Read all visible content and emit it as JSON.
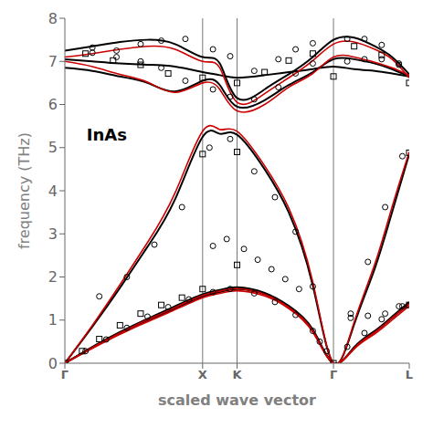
{
  "chart_data": {
    "type": "line",
    "xlabel": "scaled wave vector",
    "ylabel": "frequency (THz)",
    "xlim": [
      0,
      1.0
    ],
    "ylim": [
      0,
      8
    ],
    "xticks": [
      {
        "value": 0.0,
        "label": "Γ"
      },
      {
        "value": 0.4,
        "label": "X"
      },
      {
        "value": 0.5,
        "label": "K"
      },
      {
        "value": 0.78,
        "label": "Γ"
      },
      {
        "value": 1.0,
        "label": "L"
      }
    ],
    "yticks": [
      0,
      1,
      2,
      3,
      4,
      5,
      6,
      7,
      8
    ],
    "grid": false,
    "vlines": [
      0.4,
      0.5,
      0.78
    ],
    "annotations": [
      {
        "text": "InAs",
        "x": 0.05,
        "y": 5.3
      }
    ],
    "series": [
      {
        "type": "line",
        "color": "#000000",
        "x": [
          0.0,
          0.1,
          0.2,
          0.3,
          0.4,
          0.45,
          0.5,
          0.58,
          0.65,
          0.72,
          0.78,
          0.84,
          0.9,
          0.95,
          1.0
        ],
        "values": [
          0.0,
          0.45,
          0.85,
          1.2,
          1.55,
          1.65,
          1.72,
          1.6,
          1.3,
          0.75,
          0.0,
          0.35,
          0.72,
          1.05,
          1.38
        ]
      },
      {
        "type": "line",
        "color": "#000000",
        "x": [
          0.0,
          0.1,
          0.2,
          0.3,
          0.4,
          0.45,
          0.5,
          0.58,
          0.65,
          0.72,
          0.78,
          0.84,
          0.9,
          0.95,
          1.0
        ],
        "values": [
          0.0,
          0.47,
          0.88,
          1.25,
          1.6,
          1.7,
          1.76,
          1.63,
          1.33,
          0.78,
          0.0,
          0.37,
          0.75,
          1.08,
          1.42
        ]
      },
      {
        "type": "line",
        "color": "#000000",
        "x": [
          0.0,
          0.08,
          0.16,
          0.24,
          0.32,
          0.4,
          0.45,
          0.5,
          0.58,
          0.65,
          0.72,
          0.78,
          0.84,
          0.9,
          0.95,
          1.0
        ],
        "values": [
          0.0,
          0.85,
          1.75,
          2.7,
          3.8,
          5.25,
          5.32,
          5.3,
          4.5,
          3.5,
          1.8,
          0.0,
          0.9,
          2.2,
          3.5,
          4.85
        ]
      },
      {
        "type": "line",
        "color": "#000000",
        "x": [
          0.0,
          0.08,
          0.16,
          0.24,
          0.32,
          0.4,
          0.45,
          0.5,
          0.58,
          0.65,
          0.72,
          0.78,
          0.84,
          0.9,
          0.95,
          1.0
        ],
        "values": [
          6.85,
          6.78,
          6.65,
          6.5,
          6.3,
          6.55,
          6.45,
          5.95,
          6.1,
          6.45,
          6.75,
          7.05,
          7.05,
          6.95,
          6.82,
          6.65
        ]
      },
      {
        "type": "line",
        "color": "#000000",
        "x": [
          0.0,
          0.08,
          0.16,
          0.24,
          0.32,
          0.4,
          0.45,
          0.5,
          0.58,
          0.65,
          0.72,
          0.78,
          0.84,
          0.9,
          0.95,
          1.0
        ],
        "values": [
          7.25,
          7.35,
          7.45,
          7.5,
          7.4,
          7.1,
          6.95,
          6.15,
          6.35,
          6.7,
          7.1,
          7.5,
          7.55,
          7.35,
          7.1,
          6.7
        ]
      },
      {
        "type": "line",
        "color": "#000000",
        "x": [
          0.0,
          0.08,
          0.16,
          0.24,
          0.32,
          0.4,
          0.45,
          0.5,
          0.58,
          0.65,
          0.72,
          0.78,
          0.84,
          0.9,
          0.95,
          1.0
        ],
        "values": [
          7.05,
          7.0,
          6.95,
          6.92,
          6.88,
          6.75,
          6.68,
          6.62,
          6.68,
          6.75,
          6.82,
          6.88,
          6.82,
          6.78,
          6.72,
          6.65
        ]
      },
      {
        "type": "line",
        "color": "#cc0000",
        "x": [
          0.0,
          0.1,
          0.2,
          0.3,
          0.4,
          0.45,
          0.5,
          0.58,
          0.65,
          0.72,
          0.78,
          0.84,
          0.9,
          0.95,
          1.0
        ],
        "values": [
          0.0,
          0.43,
          0.82,
          1.17,
          1.52,
          1.62,
          1.68,
          1.56,
          1.27,
          0.72,
          0.0,
          0.33,
          0.68,
          1.0,
          1.33
        ]
      },
      {
        "type": "line",
        "color": "#cc0000",
        "x": [
          0.0,
          0.1,
          0.2,
          0.3,
          0.4,
          0.45,
          0.5,
          0.58,
          0.65,
          0.72,
          0.78,
          0.84,
          0.9,
          0.95,
          1.0
        ],
        "values": [
          0.0,
          0.45,
          0.86,
          1.22,
          1.57,
          1.67,
          1.73,
          1.6,
          1.3,
          0.75,
          0.0,
          0.35,
          0.72,
          1.05,
          1.38
        ]
      },
      {
        "type": "line",
        "color": "#cc0000",
        "x": [
          0.0,
          0.08,
          0.16,
          0.24,
          0.32,
          0.4,
          0.45,
          0.5,
          0.58,
          0.65,
          0.72,
          0.78,
          0.84,
          0.9,
          0.95,
          1.0
        ],
        "values": [
          0.0,
          0.88,
          1.82,
          2.8,
          3.95,
          5.38,
          5.42,
          5.38,
          4.58,
          3.6,
          1.88,
          0.0,
          0.95,
          2.3,
          3.62,
          4.9
        ]
      },
      {
        "type": "line",
        "color": "#cc0000",
        "x": [
          0.0,
          0.08,
          0.16,
          0.24,
          0.32,
          0.4,
          0.45,
          0.5,
          0.58,
          0.65,
          0.72,
          0.78,
          0.84,
          0.9,
          0.95,
          1.0
        ],
        "values": [
          7.0,
          6.88,
          6.7,
          6.52,
          6.28,
          6.5,
          6.35,
          5.85,
          6.0,
          6.4,
          6.72,
          7.1,
          7.1,
          6.98,
          6.85,
          6.68
        ]
      },
      {
        "type": "line",
        "color": "#cc0000",
        "x": [
          0.0,
          0.08,
          0.16,
          0.24,
          0.32,
          0.4,
          0.45,
          0.5,
          0.58,
          0.65,
          0.72,
          0.78,
          0.84,
          0.9,
          0.95,
          1.0
        ],
        "values": [
          7.1,
          7.18,
          7.28,
          7.35,
          7.28,
          7.0,
          6.85,
          6.05,
          6.25,
          6.62,
          7.02,
          7.4,
          7.45,
          7.28,
          7.05,
          6.62
        ]
      },
      {
        "type": "scatter",
        "marker": "circle",
        "color": "#000000",
        "x": [
          0.06,
          0.12,
          0.18,
          0.24,
          0.3,
          0.36,
          0.43,
          0.48,
          0.55,
          0.61,
          0.67,
          0.72,
          0.74,
          0.76,
          0.82,
          0.87,
          0.92,
          0.97,
          0.1,
          0.18,
          0.26,
          0.34,
          0.42,
          0.48,
          0.55,
          0.61,
          0.67,
          0.72,
          0.83,
          0.88,
          0.93,
          0.98,
          0.08,
          0.15,
          0.22,
          0.28,
          0.35,
          0.43,
          0.48,
          0.55,
          0.62,
          0.67,
          0.72,
          0.82,
          0.87,
          0.92,
          0.97,
          0.08,
          0.15,
          0.22,
          0.28,
          0.35,
          0.43,
          0.48,
          0.55,
          0.62,
          0.67,
          0.72,
          0.82,
          0.87,
          0.92,
          0.97,
          0.43,
          0.47,
          0.52,
          0.56,
          0.6,
          0.64,
          0.68,
          0.83,
          0.88,
          0.93,
          0.98
        ],
        "values": [
          0.28,
          0.55,
          0.82,
          1.08,
          1.3,
          1.48,
          1.65,
          1.72,
          1.62,
          1.42,
          1.12,
          0.75,
          0.5,
          0.28,
          0.38,
          0.7,
          1.02,
          1.32,
          1.55,
          2.0,
          2.75,
          3.62,
          5.0,
          5.2,
          4.45,
          3.85,
          3.05,
          1.78,
          1.15,
          2.35,
          3.62,
          4.8,
          7.2,
          7.1,
          7.0,
          6.85,
          6.55,
          6.35,
          6.18,
          6.12,
          6.4,
          6.72,
          6.95,
          7.0,
          7.05,
          7.05,
          6.95,
          7.32,
          7.25,
          7.4,
          7.48,
          7.52,
          7.28,
          7.12,
          6.78,
          7.05,
          7.28,
          7.42,
          7.52,
          7.52,
          7.38,
          6.92,
          2.72,
          2.88,
          2.65,
          2.4,
          2.18,
          1.95,
          1.72,
          1.05,
          1.1,
          1.15,
          1.32
        ]
      },
      {
        "type": "scatter",
        "marker": "square",
        "color": "#000000",
        "x": [
          0.0,
          0.05,
          0.1,
          0.16,
          0.22,
          0.28,
          0.34,
          0.4,
          0.4,
          0.4,
          0.5,
          0.5,
          0.5,
          0.78,
          0.78,
          1.0,
          1.0,
          1.0,
          0.06,
          0.14,
          0.22,
          0.3,
          0.58,
          0.65,
          0.72,
          0.84,
          0.92
        ],
        "values": [
          0.0,
          0.28,
          0.56,
          0.88,
          1.15,
          1.35,
          1.52,
          6.62,
          1.72,
          4.85,
          6.5,
          2.28,
          4.9,
          6.65,
          0.0,
          6.5,
          4.88,
          1.35,
          7.18,
          7.02,
          6.92,
          6.72,
          6.75,
          7.02,
          7.18,
          7.35,
          7.15
        ]
      }
    ]
  }
}
